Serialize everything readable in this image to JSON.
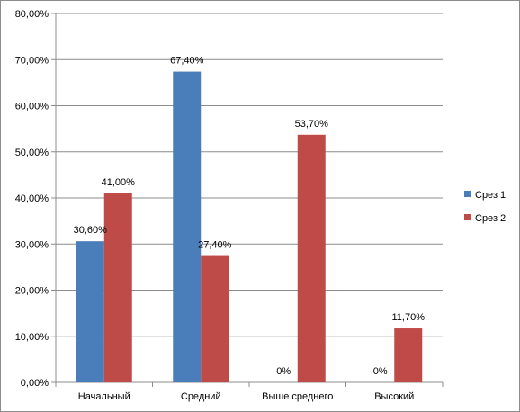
{
  "chart_data": {
    "type": "bar",
    "categories": [
      "Начальный",
      "Средний",
      "Выше среднего",
      "Высокий"
    ],
    "series": [
      {
        "name": "Срез 1",
        "values": [
          30.6,
          67.4,
          0,
          0
        ],
        "labels": [
          "30,60%",
          "67,40%",
          "0%",
          "0%"
        ],
        "color": "#4a7ebb"
      },
      {
        "name": "Срез 2",
        "values": [
          41.0,
          27.4,
          53.7,
          11.7
        ],
        "labels": [
          "41,00%",
          "27,40%",
          "53,70%",
          "11,70%"
        ],
        "color": "#be4b48"
      }
    ],
    "yticks": [
      "0,00%",
      "10,00%",
      "20,00%",
      "30,00%",
      "40,00%",
      "50,00%",
      "60,00%",
      "70,00%",
      "80,00%"
    ],
    "ylim": [
      0,
      80
    ],
    "grid": true,
    "legend_position": "right"
  }
}
